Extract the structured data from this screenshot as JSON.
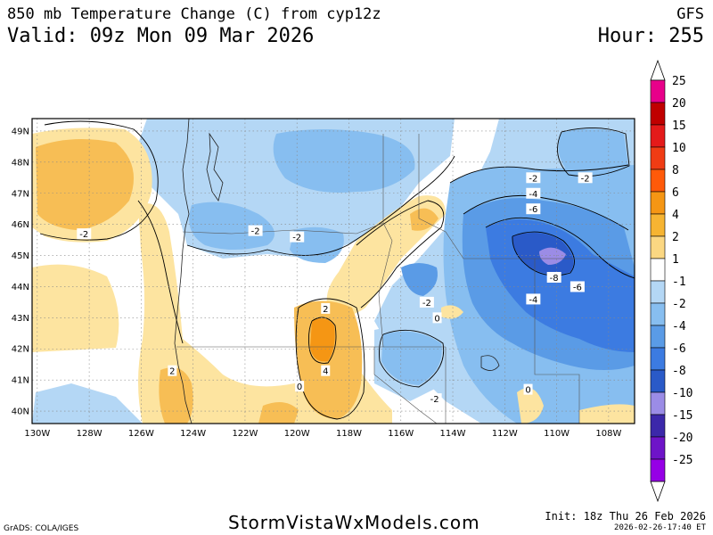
{
  "header": {
    "title": "850 mb Temperature Change (C) from cyp12z",
    "model": "GFS",
    "valid": "Valid: 09z Mon 09 Mar 2026",
    "hour": "Hour: 255"
  },
  "map": {
    "lat_labels": [
      "49N",
      "48N",
      "47N",
      "46N",
      "45N",
      "44N",
      "43N",
      "42N",
      "41N",
      "40N"
    ],
    "lon_labels": [
      "130W",
      "128W",
      "126W",
      "124W",
      "122W",
      "120W",
      "118W",
      "116W",
      "114W",
      "112W",
      "110W",
      "108W"
    ],
    "contour_labels": [
      {
        "text": "-2",
        "lon": -128.2,
        "lat": 45.7
      },
      {
        "text": "-2",
        "lon": -121.6,
        "lat": 45.8
      },
      {
        "text": "-2",
        "lon": -120.0,
        "lat": 45.6
      },
      {
        "text": "-2",
        "lon": -115.0,
        "lat": 43.5
      },
      {
        "text": "-2",
        "lon": -114.7,
        "lat": 40.4
      },
      {
        "text": "-2",
        "lon": -110.9,
        "lat": 47.5
      },
      {
        "text": "-2",
        "lon": -108.9,
        "lat": 47.5
      },
      {
        "text": "-4",
        "lon": -110.9,
        "lat": 47.0
      },
      {
        "text": "-6",
        "lon": -110.9,
        "lat": 46.5
      },
      {
        "text": "-8",
        "lon": -110.1,
        "lat": 44.3
      },
      {
        "text": "-6",
        "lon": -109.2,
        "lat": 44.0
      },
      {
        "text": "-4",
        "lon": -110.9,
        "lat": 43.6
      },
      {
        "text": "2",
        "lon": -118.9,
        "lat": 43.3
      },
      {
        "text": "4",
        "lon": -118.9,
        "lat": 41.3
      },
      {
        "text": "2",
        "lon": -124.8,
        "lat": 41.3
      },
      {
        "text": "0",
        "lon": -114.6,
        "lat": 43.0
      },
      {
        "text": "0",
        "lon": -111.1,
        "lat": 40.7
      },
      {
        "text": "0",
        "lon": -119.9,
        "lat": 40.8
      }
    ]
  },
  "legend": {
    "levels": [
      {
        "label": "25",
        "color": "#e8008a"
      },
      {
        "label": "20",
        "color": "#c00000"
      },
      {
        "label": "15",
        "color": "#e41a1a"
      },
      {
        "label": "10",
        "color": "#f03c14"
      },
      {
        "label": "8",
        "color": "#ff5a0a"
      },
      {
        "label": "6",
        "color": "#f59614"
      },
      {
        "label": "4",
        "color": "#f6b432"
      },
      {
        "label": "2",
        "color": "#fbd782"
      },
      {
        "label": "1",
        "color": "#ffffff"
      },
      {
        "label": "-1",
        "color": "#b4d7f5"
      },
      {
        "label": "-2",
        "color": "#87bef0"
      },
      {
        "label": "-4",
        "color": "#5a9be6"
      },
      {
        "label": "-6",
        "color": "#3c7be1"
      },
      {
        "label": "-8",
        "color": "#2a5ac8"
      },
      {
        "label": "-10",
        "color": "#9b8ce6"
      },
      {
        "label": "-15",
        "color": "#3c28aa"
      },
      {
        "label": "-20",
        "color": "#6e14c8"
      },
      {
        "label": "-25",
        "color": "#9600e6"
      }
    ],
    "top_arrow_color": "#ffffff",
    "bottom_arrow_color": "#ffffff"
  },
  "footer": {
    "site": "StormVistaWxModels.com",
    "grads": "GrADS: COLA/IGES",
    "init": "Init: 18z Thu 26 Feb 2026",
    "stamp": "2026-02-26-17:40 ET"
  }
}
